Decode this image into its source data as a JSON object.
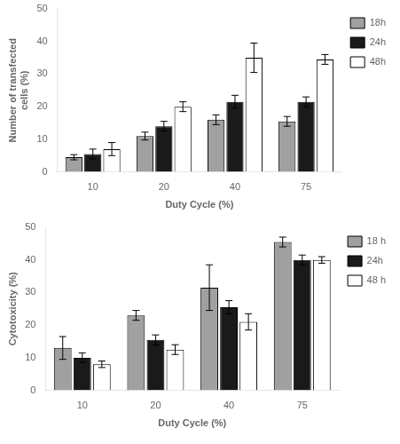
{
  "chart_data": [
    {
      "type": "bar",
      "xlabel": "Duty Cycle (%)",
      "ylabel": "Number of transfected\ncells (%)",
      "categories": [
        "10",
        "20",
        "40",
        "75"
      ],
      "series": [
        {
          "name": "18h",
          "color": "#a0a0a0",
          "values": [
            4.5,
            11.0,
            16.0,
            15.5
          ],
          "errors": [
            0.8,
            1.2,
            1.5,
            1.5
          ]
        },
        {
          "name": "24h",
          "color": "#1a1a1a",
          "values": [
            5.5,
            14.0,
            21.5,
            21.5
          ],
          "errors": [
            1.5,
            1.5,
            2.0,
            1.5
          ]
        },
        {
          "name": "48h",
          "color": "#ffffff",
          "values": [
            7.0,
            20.0,
            35.0,
            34.5
          ],
          "errors": [
            2.0,
            1.5,
            4.5,
            1.5
          ]
        }
      ],
      "ylim": [
        0,
        50
      ],
      "yticks": [
        0,
        10,
        20,
        30,
        40,
        50
      ],
      "grid": false,
      "legend": "right"
    },
    {
      "type": "bar",
      "xlabel": "Duty Cycle (%)",
      "ylabel": "Cytotoxicity (%)",
      "categories": [
        "10",
        "20",
        "40",
        "75"
      ],
      "series": [
        {
          "name": "18 h",
          "color": "#a0a0a0",
          "values": [
            13.0,
            23.0,
            31.5,
            45.5
          ],
          "errors": [
            3.5,
            1.5,
            7.0,
            1.5
          ]
        },
        {
          "name": "24h",
          "color": "#1a1a1a",
          "values": [
            10.0,
            15.5,
            25.5,
            40.0
          ],
          "errors": [
            1.5,
            1.5,
            2.0,
            1.5
          ]
        },
        {
          "name": "48 h",
          "color": "#ffffff",
          "values": [
            8.0,
            12.5,
            21.0,
            40.0
          ],
          "errors": [
            1.0,
            1.5,
            2.5,
            1.0
          ]
        }
      ],
      "ylim": [
        0,
        50
      ],
      "yticks": [
        0,
        10,
        20,
        30,
        40,
        50
      ],
      "grid": false,
      "legend": "right"
    }
  ]
}
